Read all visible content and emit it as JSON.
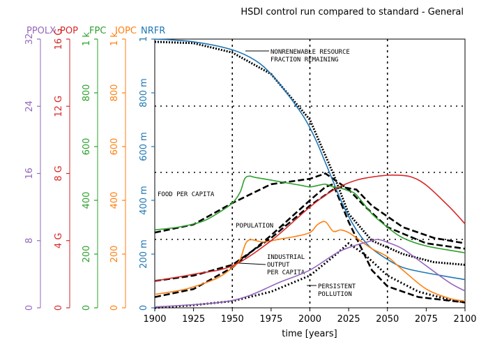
{
  "chart_data": {
    "type": "line",
    "title": "HSDI control run compared to standard - General",
    "xlabel": "time [years]",
    "xlim": [
      1900,
      2100
    ],
    "x_ticks": [
      1900,
      1925,
      1950,
      1975,
      2000,
      2025,
      2050,
      2075,
      2100
    ],
    "colors": {
      "ppolx": "#9467bd",
      "pop": "#d62728",
      "fpc": "#2ca02c",
      "iopc": "#ff7f0e",
      "nrfr": "#1f77b4",
      "reference": "#000000"
    },
    "axes": [
      {
        "name": "PPOLX",
        "ylim": [
          0,
          32
        ],
        "ticks": [
          0,
          8,
          16,
          24,
          32
        ],
        "tick_labels": [
          "0",
          "8",
          "16",
          "24",
          "32"
        ],
        "color_key": "ppolx"
      },
      {
        "name": "POP",
        "ylim": [
          0,
          16000000000
        ],
        "ticks": [
          0,
          4000000000,
          8000000000,
          12000000000,
          16000000000
        ],
        "tick_labels": [
          "0",
          "4 G",
          "8 G",
          "12 G",
          "16 G"
        ],
        "color_key": "pop"
      },
      {
        "name": "FPC",
        "ylim": [
          0,
          1000
        ],
        "ticks": [
          0,
          200,
          400,
          600,
          800,
          1000
        ],
        "tick_labels": [
          "0",
          "200",
          "400",
          "600",
          "800",
          "1 k"
        ],
        "color_key": "fpc"
      },
      {
        "name": "IOPC",
        "ylim": [
          0,
          1000
        ],
        "ticks": [
          0,
          200,
          400,
          600,
          800,
          1000
        ],
        "tick_labels": [
          "0",
          "200",
          "400",
          "600",
          "800",
          "1 k"
        ],
        "color_key": "iopc"
      },
      {
        "name": "NRFR",
        "ylim": [
          0,
          1
        ],
        "ticks": [
          0,
          0.2,
          0.4,
          0.6,
          0.8,
          1
        ],
        "tick_labels": [
          "0",
          "200 m",
          "400 m",
          "600 m",
          "800 m",
          "1"
        ],
        "color_key": "nrfr"
      }
    ],
    "series": [
      {
        "name": "NRFR",
        "color_key": "nrfr",
        "axis": 4,
        "x": [
          1900,
          1925,
          1950,
          1965,
          1975,
          1985,
          1995,
          2000,
          2005,
          2010,
          2015,
          2020,
          2025,
          2030,
          2035,
          2040,
          2050,
          2060,
          2075,
          2100
        ],
        "y": [
          1.0,
          0.99,
          0.96,
          0.92,
          0.87,
          0.8,
          0.72,
          0.67,
          0.61,
          0.54,
          0.47,
          0.4,
          0.34,
          0.29,
          0.25,
          0.22,
          0.18,
          0.15,
          0.13,
          0.105
        ]
      },
      {
        "name": "FPC",
        "color_key": "fpc",
        "axis": 2,
        "x": [
          1900,
          1915,
          1930,
          1940,
          1950,
          1955,
          1958,
          1961,
          1965,
          1975,
          1985,
          1995,
          2000,
          2005,
          2010,
          2015,
          2020,
          2025,
          2030,
          2040,
          2050,
          2060,
          2075,
          2100
        ],
        "y": [
          290,
          300,
          320,
          350,
          390,
          430,
          480,
          490,
          485,
          475,
          465,
          455,
          450,
          455,
          460,
          450,
          445,
          435,
          420,
          350,
          300,
          260,
          230,
          205
        ]
      },
      {
        "name": "IOPC",
        "color_key": "iopc",
        "axis": 3,
        "x": [
          1900,
          1920,
          1940,
          1950,
          1955,
          1960,
          1970,
          1980,
          1990,
          2000,
          2005,
          2010,
          2015,
          2020,
          2025,
          2030,
          2040,
          2050,
          2060,
          2075,
          2090,
          2100
        ],
        "y": [
          50,
          70,
          110,
          150,
          180,
          250,
          245,
          255,
          265,
          280,
          310,
          320,
          285,
          290,
          280,
          260,
          220,
          190,
          140,
          70,
          35,
          25
        ]
      },
      {
        "name": "POP",
        "color_key": "pop",
        "axis": 1,
        "x": [
          1900,
          1925,
          1950,
          1975,
          2000,
          2015,
          2030,
          2045,
          2055,
          2065,
          2075,
          2090,
          2100
        ],
        "y": [
          1600000000,
          2000000000,
          2500000000,
          4000000000,
          6000000000,
          7000000000,
          7600000000,
          7850000000,
          7900000000,
          7800000000,
          7300000000,
          6000000000,
          5000000000
        ]
      },
      {
        "name": "PPOLX",
        "color_key": "ppolx",
        "axis": 0,
        "x": [
          1900,
          1940,
          1960,
          1980,
          2000,
          2020,
          2040,
          2045,
          2050,
          2060,
          2075,
          2090,
          2100
        ],
        "y": [
          0.1,
          0.6,
          1.4,
          3.0,
          4.5,
          6.8,
          8.0,
          8.1,
          7.8,
          7.0,
          5.0,
          3.0,
          2.0
        ]
      }
    ],
    "reference_series": [
      {
        "x": [
          1900,
          1925,
          1950,
          1975,
          2000,
          2015,
          2025,
          2040,
          2060,
          2080,
          2100
        ],
        "y": [
          0.99,
          0.985,
          0.95,
          0.87,
          0.7,
          0.5,
          0.35,
          0.25,
          0.2,
          0.17,
          0.16
        ]
      },
      {
        "x": [
          1900,
          1925,
          1950,
          1975,
          2000,
          2010,
          2025,
          2035,
          2050,
          2075,
          2100
        ],
        "y": [
          0.28,
          0.31,
          0.39,
          0.46,
          0.48,
          0.5,
          0.44,
          0.38,
          0.3,
          0.24,
          0.22
        ]
      },
      {
        "x": [
          1900,
          1925,
          1950,
          1975,
          2000,
          2015,
          2020,
          2030,
          2040,
          2060,
          2080,
          2100
        ],
        "y": [
          0.1,
          0.12,
          0.16,
          0.26,
          0.38,
          0.44,
          0.45,
          0.44,
          0.38,
          0.3,
          0.26,
          0.24
        ]
      },
      {
        "x": [
          1900,
          1925,
          1950,
          1975,
          2000,
          2010,
          2015,
          2025,
          2040,
          2050,
          2070,
          2100
        ],
        "y": [
          0.04,
          0.07,
          0.15,
          0.27,
          0.4,
          0.45,
          0.46,
          0.32,
          0.14,
          0.08,
          0.04,
          0.02
        ]
      },
      {
        "x": [
          1900,
          1925,
          1950,
          1975,
          2000,
          2015,
          2025,
          2035,
          2050,
          2070,
          2090,
          2100
        ],
        "y": [
          0.0,
          0.01,
          0.025,
          0.06,
          0.12,
          0.19,
          0.24,
          0.2,
          0.12,
          0.06,
          0.03,
          0.02
        ]
      }
    ],
    "reference_labels": [
      "NONRENEWABLE RESOURCE",
      "FRACTION REMAINING",
      "FOOD PER CAPITA",
      "POPULATION",
      "INDUSTRIAL",
      "OUTPUT",
      "PER CAPITA",
      "PERSISTENT",
      "POLLUTION"
    ]
  }
}
